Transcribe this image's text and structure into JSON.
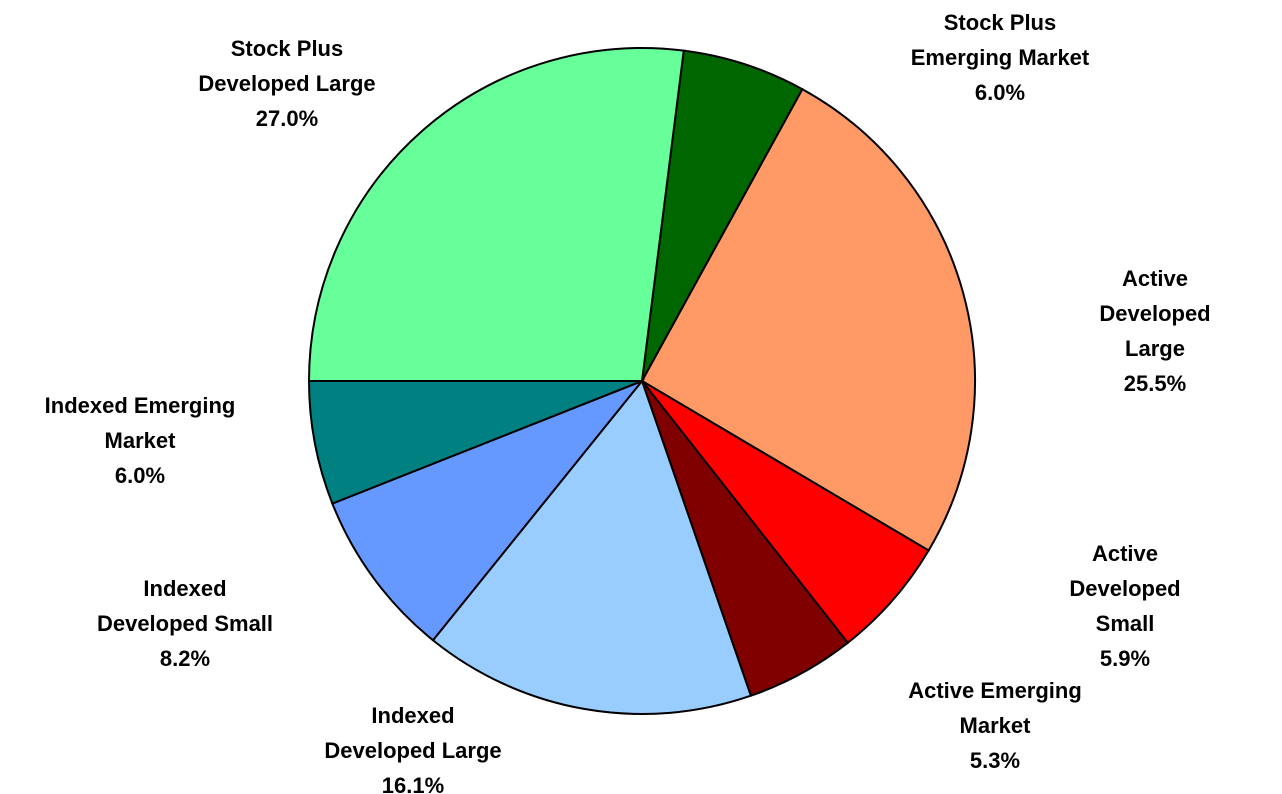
{
  "chart_data": {
    "type": "pie",
    "categories": [
      "Stock Plus\nEmerging Market",
      "Active Developed\nLarge",
      "Active Developed\nSmall",
      "Active Emerging\nMarket",
      "Indexed\nDeveloped Large",
      "Indexed\nDeveloped Small",
      "Indexed Emerging\nMarket",
      "Stock Plus\nDeveloped Large"
    ],
    "values": [
      6.0,
      25.5,
      5.9,
      5.3,
      16.1,
      8.2,
      6.0,
      27.0
    ],
    "value_labels": [
      "6.0%",
      "25.5%",
      "5.9%",
      "5.3%",
      "16.1%",
      "8.2%",
      "6.0%",
      "27.0%"
    ],
    "colors": [
      "#006600",
      "#FF9966",
      "#FF0000",
      "#800000",
      "#99CCFF",
      "#6699FF",
      "#008080",
      "#66FF99"
    ]
  }
}
